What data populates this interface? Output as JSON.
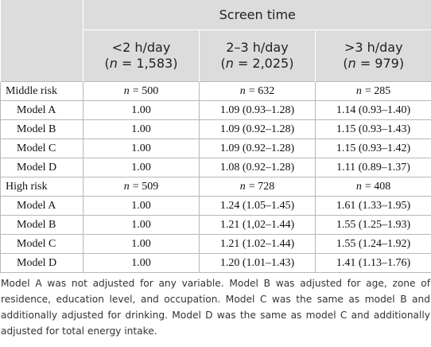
{
  "table": {
    "header": {
      "group": "Screen time",
      "columns": [
        {
          "label": "<2 h/day",
          "sample_open": "(",
          "sample_var": "n",
          "sample_value": "= 1,583)"
        },
        {
          "label": "2–3 h/day",
          "sample_open": "(",
          "sample_var": "n",
          "sample_value": "= 2,025)"
        },
        {
          "label": ">3 h/day",
          "sample_open": "(",
          "sample_var": "n",
          "sample_value": "= 979)"
        }
      ]
    },
    "sections": [
      {
        "label": "Middle risk",
        "counts": [
          {
            "var": "n",
            "value": "= 500"
          },
          {
            "var": "n",
            "value": "= 632"
          },
          {
            "var": "n",
            "value": "= 285"
          }
        ],
        "rows": [
          {
            "label": "Model A",
            "cells": [
              "1.00",
              "1.09 (0.93–1.28)",
              "1.14 (0.93–1.40)"
            ]
          },
          {
            "label": "Model B",
            "cells": [
              "1.00",
              "1.09 (0.92–1.28)",
              "1.15 (0.93–1.43)"
            ]
          },
          {
            "label": "Model C",
            "cells": [
              "1.00",
              "1.09 (0.92–1.28)",
              "1.15 (0.93–1.42)"
            ]
          },
          {
            "label": "Model D",
            "cells": [
              "1.00",
              "1.08 (0.92–1.28)",
              "1.11 (0.89–1.37)"
            ]
          }
        ]
      },
      {
        "label": "High risk",
        "counts": [
          {
            "var": "n",
            "value": "= 509"
          },
          {
            "var": "n",
            "value": "= 728"
          },
          {
            "var": "n",
            "value": "= 408"
          }
        ],
        "rows": [
          {
            "label": "Model A",
            "cells": [
              "1.00",
              "1.24 (1.05–1.45)",
              "1.61 (1.33–1.95)"
            ]
          },
          {
            "label": "Model B",
            "cells": [
              "1.00",
              "1.21 (1,02–1.44)",
              "1.55 (1.25–1.93)"
            ]
          },
          {
            "label": "Model C",
            "cells": [
              "1.00",
              "1.21 (1.02–1.44)",
              "1.55 (1.24–1.92)"
            ]
          },
          {
            "label": "Model D",
            "cells": [
              "1.00",
              "1.20 (1.01–1.43)",
              "1.41 (1.13–1.76)"
            ]
          }
        ]
      }
    ]
  },
  "footnote": "Model A was not adjusted for any variable. Model B was adjusted for age, zone of residence, education level, and occupation. Model C was the same as model B and additionally adjusted for drinking. Model D was the same as model C and additionally adjusted for total energy intake."
}
